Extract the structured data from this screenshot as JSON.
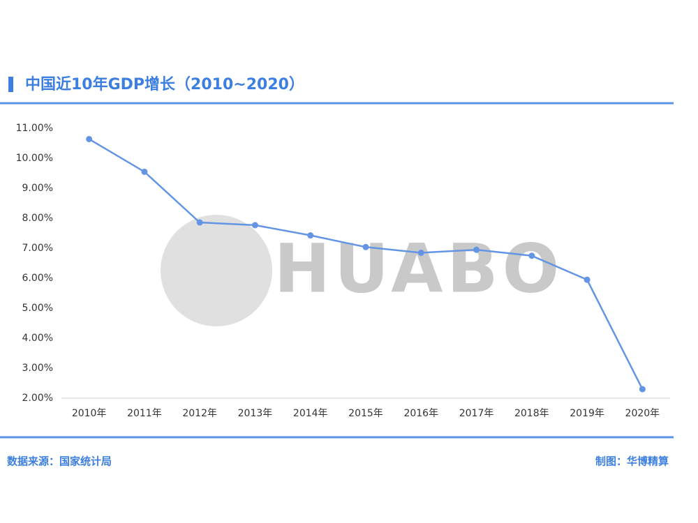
{
  "chart_data": {
    "type": "line",
    "title": "中国近10年GDP增长（2010~2020）",
    "watermark": "HUABO",
    "categories": [
      "2010年",
      "2011年",
      "2012年",
      "2013年",
      "2014年",
      "2015年",
      "2016年",
      "2017年",
      "2018年",
      "2019年",
      "2020年"
    ],
    "series": [
      {
        "color": "#6495e5",
        "values": [
          10.64,
          9.55,
          7.86,
          7.77,
          7.43,
          7.04,
          6.85,
          6.95,
          6.75,
          5.95,
          2.3
        ]
      }
    ],
    "ylim": [
      2,
      11
    ],
    "yticks": [
      {
        "value": 2,
        "label": "2.00%"
      },
      {
        "value": 3,
        "label": "3.00%"
      },
      {
        "value": 4,
        "label": "4.00%"
      },
      {
        "value": 5,
        "label": "5.00%"
      },
      {
        "value": 6,
        "label": "6.00%"
      },
      {
        "value": 7,
        "label": "7.00%"
      },
      {
        "value": 8,
        "label": "8.00%"
      },
      {
        "value": 9,
        "label": "9.00%"
      },
      {
        "value": 10,
        "label": "10.00%"
      },
      {
        "value": 11,
        "label": "11.00%"
      }
    ],
    "grid": false,
    "source": "数据来源：国家统计局",
    "credit": "制图：华博精算"
  }
}
